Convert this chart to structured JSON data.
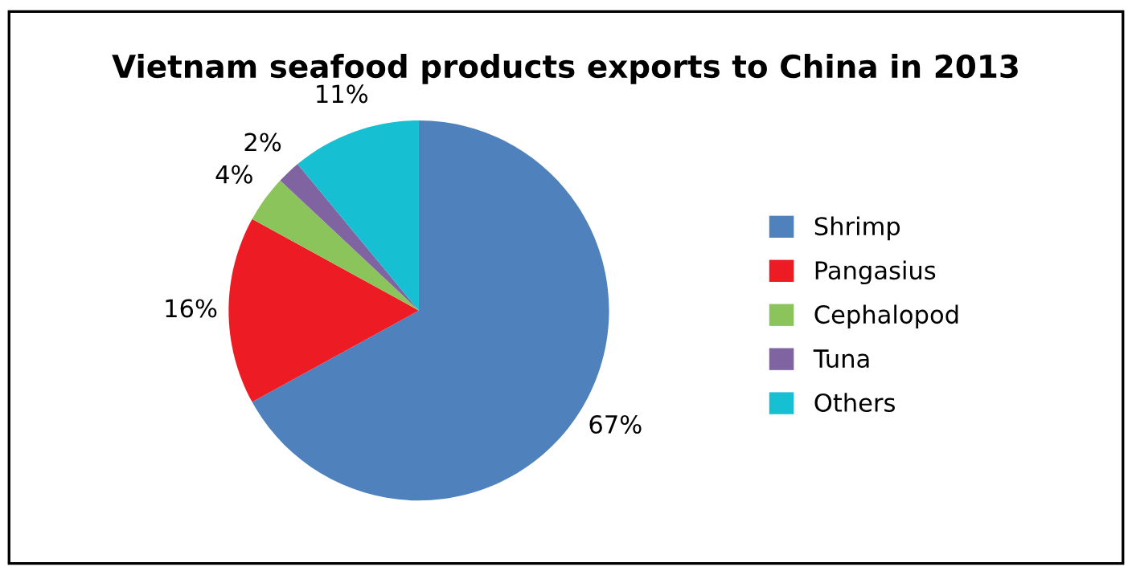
{
  "chart_data": {
    "type": "pie",
    "title": "Vietnam seafood products exports to China in 2013",
    "categories": [
      "Shrimp",
      "Pangasius",
      "Cephalopod",
      "Tuna",
      "Others"
    ],
    "values": [
      67,
      16,
      4,
      2,
      11
    ],
    "colors": [
      "#4f81bd",
      "#ed1c24",
      "#8cc45c",
      "#8064a2",
      "#17bfd3"
    ],
    "value_labels": [
      "67%",
      "16%",
      "4%",
      "2%",
      "11%"
    ],
    "legend": "right"
  }
}
